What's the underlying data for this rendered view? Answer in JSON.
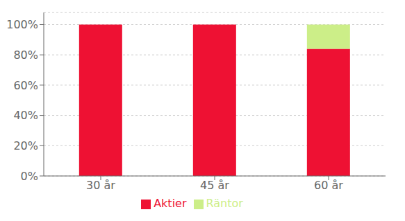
{
  "chart_data": {
    "type": "bar",
    "stacked": true,
    "categories": [
      "30 år",
      "45 år",
      "60 år"
    ],
    "series": [
      {
        "name": "Aktier",
        "color": "#ee1133",
        "values": [
          1.0,
          1.0,
          0.84
        ]
      },
      {
        "name": "Räntor",
        "color": "#ccee88",
        "values": [
          0.0,
          0.0,
          0.16
        ]
      }
    ],
    "ylim": [
      0,
      1.08
    ],
    "yticks": [
      {
        "value": 0,
        "label": "0%"
      },
      {
        "value": 0.2,
        "label": "20%"
      },
      {
        "value": 0.4,
        "label": "40%"
      },
      {
        "value": 0.6,
        "label": "60%"
      },
      {
        "value": 0.8,
        "label": "80%"
      },
      {
        "value": 1.0,
        "label": "100%"
      }
    ],
    "grid": true,
    "legend": "bottom"
  }
}
